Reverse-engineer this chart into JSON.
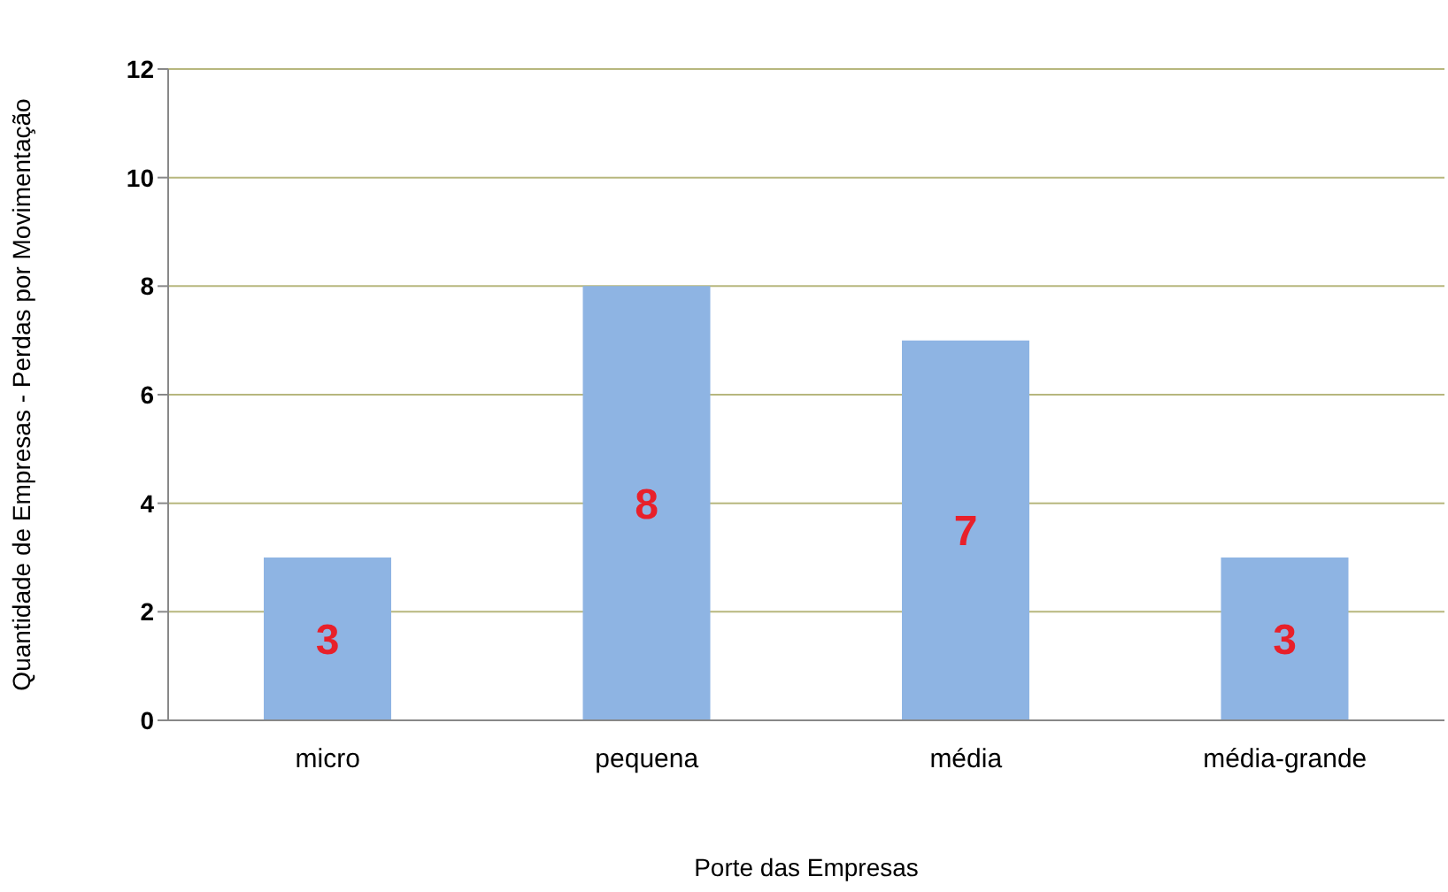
{
  "chart_data": {
    "type": "bar",
    "xlabel": "Porte das Empresas",
    "ylabel": "Quantidade de Empresas - Perdas por Movimentação",
    "categories": [
      "micro",
      "pequena",
      "média",
      "média-grande"
    ],
    "values": [
      3,
      8,
      7,
      3
    ],
    "color": "#8eb4e3",
    "ylim": [
      0,
      12
    ],
    "yticks": [
      0,
      2,
      4,
      6,
      8,
      10,
      12
    ],
    "grid": "y",
    "data_labels": true,
    "legend": false
  }
}
